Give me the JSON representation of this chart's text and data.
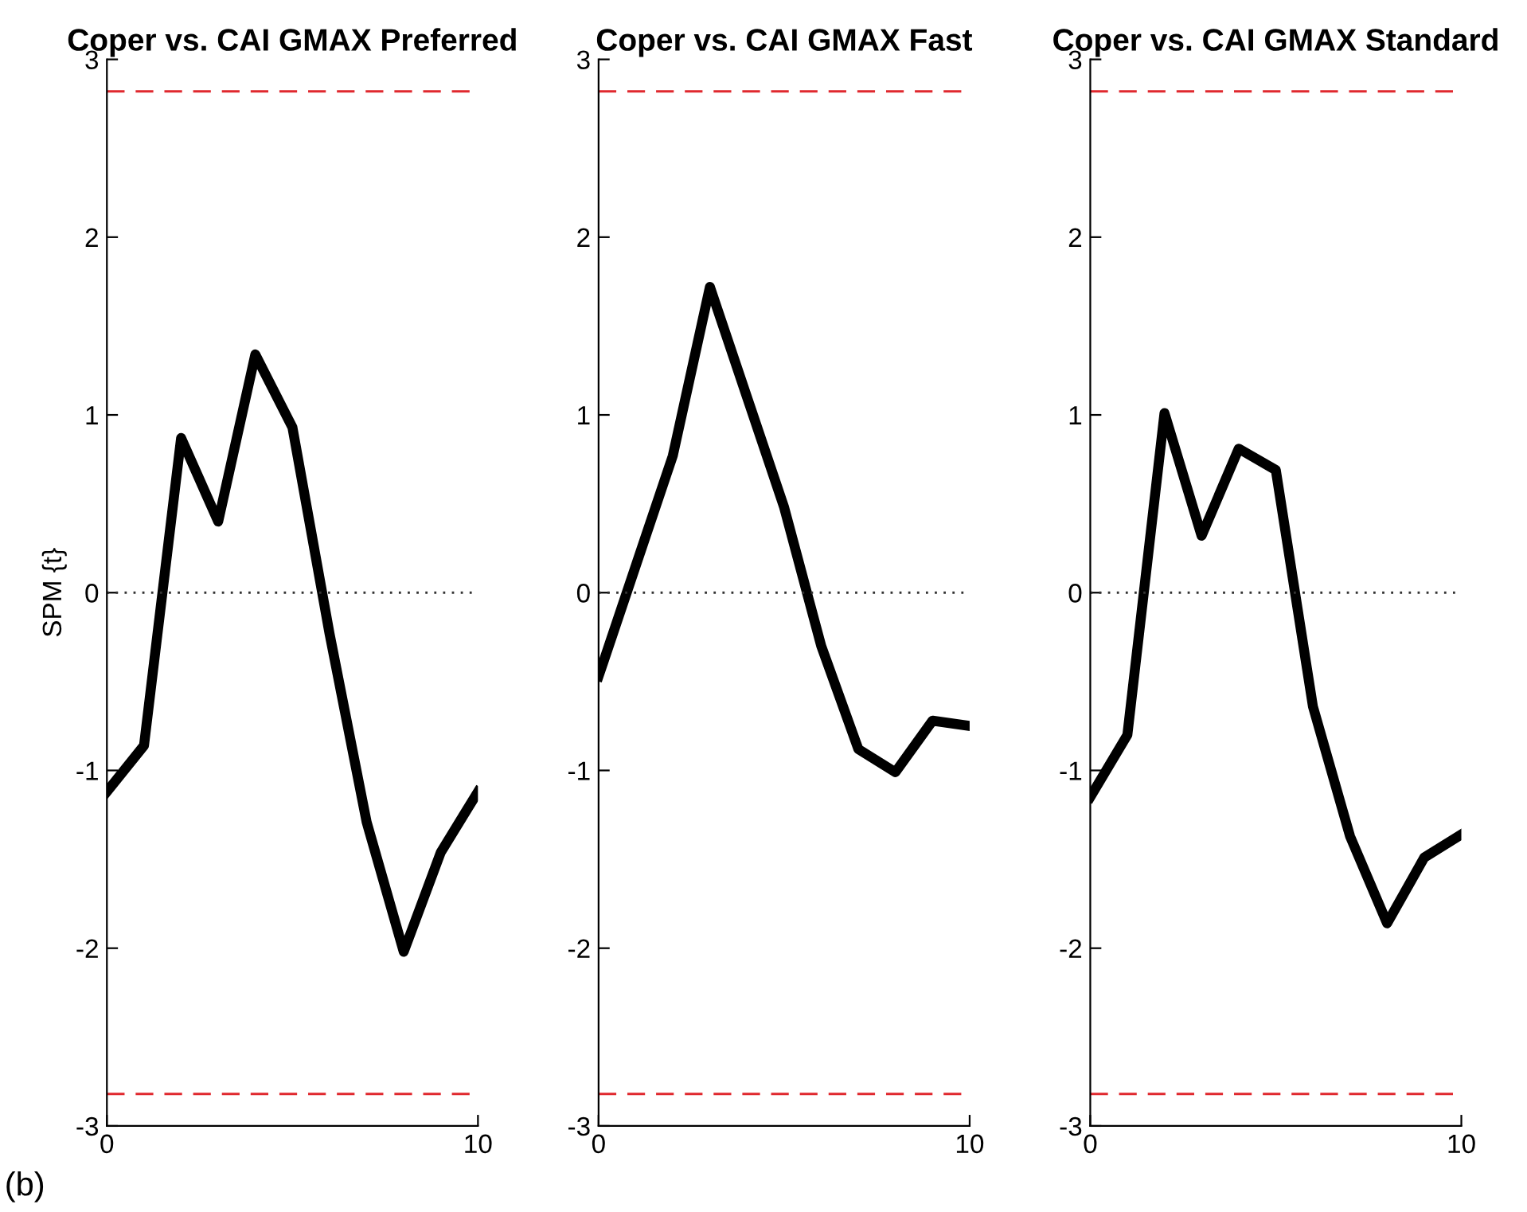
{
  "chart_data": [
    {
      "type": "line",
      "title": "Coper vs. CAI GMAX Preferred",
      "ylabel": "SPM {t}",
      "x": [
        0,
        1,
        2,
        3,
        4,
        5,
        6,
        7,
        8,
        9,
        10
      ],
      "xlim": [
        0,
        10
      ],
      "xticks": [
        0,
        10
      ],
      "ylim": [
        -3,
        3
      ],
      "yticks": [
        -3,
        -2,
        -1,
        0,
        1,
        2,
        3
      ],
      "series": [
        {
          "color": "#000000",
          "values": [
            -1.12,
            -0.86,
            0.87,
            0.4,
            1.34,
            0.93,
            -0.23,
            -1.29,
            -2.02,
            -1.46,
            -1.12
          ]
        }
      ],
      "ref_lines": [
        {
          "axis": "y",
          "value": 2.82,
          "color": "#e0282e",
          "line_style": "dashed"
        },
        {
          "axis": "y",
          "value": -2.82,
          "color": "#e0282e",
          "line_style": "dashed"
        },
        {
          "axis": "y",
          "value": 0,
          "color": "#333333",
          "line_style": "dotted"
        }
      ],
      "annotations": [
        "(b)"
      ],
      "grid": false
    },
    {
      "type": "line",
      "title": "Coper vs. CAI GMAX Fast",
      "x": [
        0,
        1,
        2,
        3,
        4,
        5,
        6,
        7,
        8,
        9,
        10
      ],
      "xlim": [
        0,
        10
      ],
      "xticks": [
        0,
        10
      ],
      "ylim": [
        -3,
        3
      ],
      "yticks": [
        -3,
        -2,
        -1,
        0,
        1,
        2,
        3
      ],
      "series": [
        {
          "color": "#000000",
          "values": [
            -0.47,
            0.15,
            0.77,
            1.72,
            1.1,
            0.48,
            -0.3,
            -0.88,
            -1.01,
            -0.72,
            -0.75
          ]
        }
      ],
      "ref_lines": [
        {
          "axis": "y",
          "value": 2.82,
          "color": "#e0282e",
          "line_style": "dashed"
        },
        {
          "axis": "y",
          "value": -2.82,
          "color": "#e0282e",
          "line_style": "dashed"
        },
        {
          "axis": "y",
          "value": 0,
          "color": "#333333",
          "line_style": "dotted"
        }
      ],
      "grid": false
    },
    {
      "type": "line",
      "title": "Coper vs. CAI GMAX Standard",
      "x": [
        0,
        1,
        2,
        3,
        4,
        5,
        6,
        7,
        8,
        9,
        10
      ],
      "xlim": [
        0,
        10
      ],
      "xticks": [
        0,
        10
      ],
      "ylim": [
        -3,
        3
      ],
      "yticks": [
        -3,
        -2,
        -1,
        0,
        1,
        2,
        3
      ],
      "series": [
        {
          "color": "#000000",
          "values": [
            -1.15,
            -0.8,
            1.01,
            0.32,
            0.81,
            0.69,
            -0.64,
            -1.37,
            -1.86,
            -1.49,
            -1.36
          ]
        }
      ],
      "ref_lines": [
        {
          "axis": "y",
          "value": 2.82,
          "color": "#e0282e",
          "line_style": "dashed"
        },
        {
          "axis": "y",
          "value": -2.82,
          "color": "#e0282e",
          "line_style": "dashed"
        },
        {
          "axis": "y",
          "value": 0,
          "color": "#333333",
          "line_style": "dotted"
        }
      ],
      "grid": false
    }
  ]
}
